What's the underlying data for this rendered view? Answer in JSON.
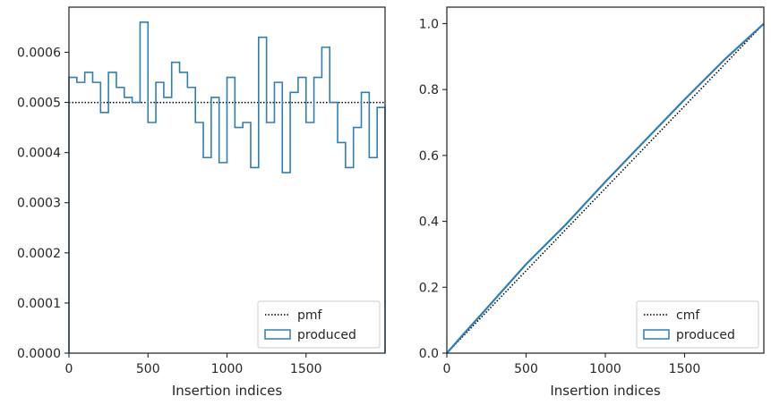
{
  "chart_data": [
    {
      "type": "histogram-step",
      "xlabel": "Insertion indices",
      "ylabel": "",
      "xlim": [
        0,
        2000
      ],
      "ylim": [
        0,
        0.00069
      ],
      "xticks": [
        "0",
        "500",
        "1000",
        "1500"
      ],
      "xtick_values": [
        0,
        500,
        1000,
        1500
      ],
      "yticks": [
        "0.0000",
        "0.0001",
        "0.0002",
        "0.0003",
        "0.0004",
        "0.0005",
        "0.0006"
      ],
      "ytick_values": [
        0,
        0.0001,
        0.0002,
        0.0003,
        0.0004,
        0.0005,
        0.0006
      ],
      "legend": {
        "position": "lower-right",
        "entries": [
          "pmf",
          "produced"
        ]
      },
      "reference": {
        "name": "pmf",
        "style": "dotted",
        "value": 0.0005
      },
      "series": [
        {
          "name": "produced",
          "bin_width": 50,
          "values": [
            0.00055,
            0.00054,
            0.00056,
            0.00054,
            0.00048,
            0.00056,
            0.00053,
            0.00051,
            0.0005,
            0.00066,
            0.00046,
            0.00054,
            0.00051,
            0.00058,
            0.00056,
            0.00053,
            0.00046,
            0.00039,
            0.00051,
            0.00038,
            0.00055,
            0.00045,
            0.00046,
            0.00037,
            0.00063,
            0.00046,
            0.00054,
            0.00036,
            0.00052,
            0.00055,
            0.00046,
            0.00055,
            0.00061,
            0.0005,
            0.00042,
            0.00037,
            0.00045,
            0.00052,
            0.00039,
            0.00049
          ]
        }
      ]
    },
    {
      "type": "line",
      "xlabel": "Insertion indices",
      "ylabel": "",
      "xlim": [
        0,
        2000
      ],
      "ylim": [
        0,
        1.05
      ],
      "xticks": [
        "0",
        "500",
        "1000",
        "1500"
      ],
      "xtick_values": [
        0,
        500,
        1000,
        1500
      ],
      "yticks": [
        "0.0",
        "0.2",
        "0.4",
        "0.6",
        "0.8",
        "1.0"
      ],
      "ytick_values": [
        0,
        0.2,
        0.4,
        0.6,
        0.8,
        1.0
      ],
      "legend": {
        "position": "lower-right",
        "entries": [
          "cmf",
          "produced"
        ]
      },
      "reference": {
        "name": "cmf",
        "style": "dotted",
        "x": [
          0,
          2000
        ],
        "y": [
          0,
          1.0
        ]
      },
      "series": [
        {
          "name": "produced",
          "x": [
            0,
            100,
            250,
            500,
            750,
            1000,
            1250,
            1500,
            1750,
            2000
          ],
          "y": [
            0.0,
            0.055,
            0.135,
            0.27,
            0.39,
            0.52,
            0.645,
            0.77,
            0.89,
            1.0
          ]
        }
      ]
    }
  ],
  "colors": {
    "series": "#2f7fb5",
    "reference": "#000000",
    "axes": "#262626"
  }
}
